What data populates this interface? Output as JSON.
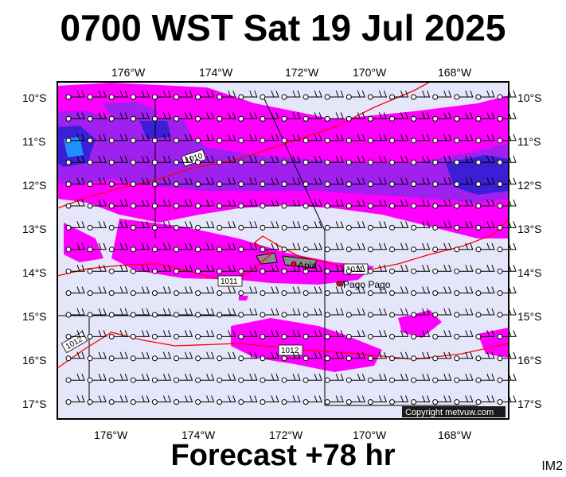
{
  "header": {
    "title": "0700 WST Sat 19 Jul 2025"
  },
  "footer": {
    "forecast_label": "Forecast +78 hr",
    "product_code": "IM2"
  },
  "map": {
    "copyright": "Copyright metvuw.com",
    "lon_labels": [
      "176°W",
      "174°W",
      "172°W",
      "170°W",
      "168°W"
    ],
    "lat_labels": [
      "10°S",
      "11°S",
      "12°S",
      "13°S",
      "14°S",
      "15°S",
      "16°S",
      "17°S"
    ],
    "places": [
      {
        "name": "Apia"
      },
      {
        "name": "Pago Pago"
      }
    ],
    "isobar_labels": [
      "1010",
      "1011",
      "1011",
      "1012",
      "1012"
    ],
    "colors": {
      "background": "#e6e6fa",
      "rain_light": "#ff00ff",
      "rain_medium": "#a020f0",
      "rain_heavy": "#3a1fd6",
      "rain_extreme": "#1e90ff",
      "isobar": "#ff0000"
    }
  }
}
